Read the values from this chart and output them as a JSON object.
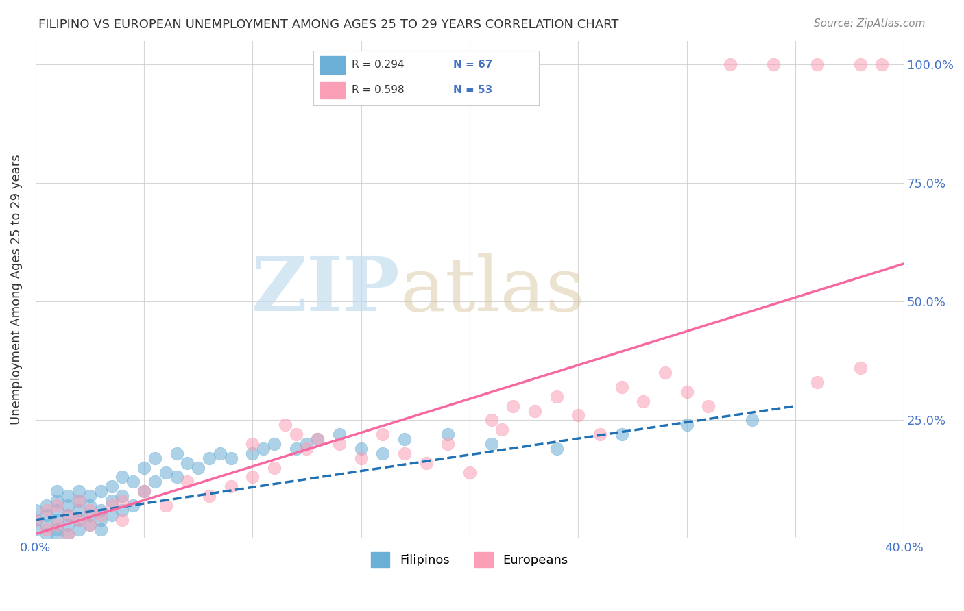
{
  "title": "FILIPINO VS EUROPEAN UNEMPLOYMENT AMONG AGES 25 TO 29 YEARS CORRELATION CHART",
  "source": "Source: ZipAtlas.com",
  "ylabel": "Unemployment Among Ages 25 to 29 years",
  "xlim": [
    0.0,
    0.4
  ],
  "ylim": [
    0.0,
    1.05
  ],
  "legend_blue_R": "R = 0.294",
  "legend_blue_N": "N = 67",
  "legend_pink_R": "R = 0.598",
  "legend_pink_N": "N = 53",
  "blue_color": "#6baed6",
  "pink_color": "#fa9fb5",
  "blue_line_color": "#2171b5",
  "pink_line_color": "#f768a1",
  "title_color": "#333333",
  "axis_color": "#4472c4",
  "watermark_zip": "ZIP",
  "watermark_atlas": "atlas",
  "filipinos_x": [
    0.0,
    0.0,
    0.0,
    0.005,
    0.005,
    0.005,
    0.005,
    0.01,
    0.01,
    0.01,
    0.01,
    0.01,
    0.01,
    0.015,
    0.015,
    0.015,
    0.015,
    0.015,
    0.02,
    0.02,
    0.02,
    0.02,
    0.02,
    0.025,
    0.025,
    0.025,
    0.025,
    0.03,
    0.03,
    0.03,
    0.03,
    0.035,
    0.035,
    0.035,
    0.04,
    0.04,
    0.04,
    0.045,
    0.045,
    0.05,
    0.05,
    0.055,
    0.055,
    0.06,
    0.065,
    0.065,
    0.07,
    0.075,
    0.08,
    0.085,
    0.09,
    0.1,
    0.105,
    0.11,
    0.12,
    0.125,
    0.13,
    0.14,
    0.15,
    0.16,
    0.17,
    0.19,
    0.21,
    0.24,
    0.27,
    0.3,
    0.33
  ],
  "filipinos_y": [
    0.02,
    0.04,
    0.06,
    0.01,
    0.03,
    0.05,
    0.07,
    0.01,
    0.02,
    0.04,
    0.06,
    0.08,
    0.1,
    0.01,
    0.03,
    0.05,
    0.07,
    0.09,
    0.02,
    0.04,
    0.06,
    0.08,
    0.1,
    0.03,
    0.05,
    0.07,
    0.09,
    0.02,
    0.04,
    0.06,
    0.1,
    0.05,
    0.08,
    0.11,
    0.06,
    0.09,
    0.13,
    0.07,
    0.12,
    0.1,
    0.15,
    0.12,
    0.17,
    0.14,
    0.13,
    0.18,
    0.16,
    0.15,
    0.17,
    0.18,
    0.17,
    0.18,
    0.19,
    0.2,
    0.19,
    0.2,
    0.21,
    0.22,
    0.19,
    0.18,
    0.21,
    0.22,
    0.2,
    0.19,
    0.22,
    0.24,
    0.25
  ],
  "europeans_x": [
    0.0,
    0.005,
    0.005,
    0.01,
    0.01,
    0.015,
    0.015,
    0.02,
    0.02,
    0.025,
    0.025,
    0.03,
    0.035,
    0.04,
    0.04,
    0.05,
    0.06,
    0.07,
    0.08,
    0.09,
    0.1,
    0.1,
    0.11,
    0.115,
    0.12,
    0.125,
    0.13,
    0.14,
    0.15,
    0.16,
    0.17,
    0.18,
    0.19,
    0.2,
    0.21,
    0.215,
    0.22,
    0.23,
    0.24,
    0.25,
    0.26,
    0.27,
    0.28,
    0.29,
    0.3,
    0.31,
    0.32,
    0.34,
    0.36,
    0.36,
    0.38,
    0.38,
    0.39
  ],
  "europeans_y": [
    0.04,
    0.02,
    0.06,
    0.03,
    0.07,
    0.01,
    0.05,
    0.04,
    0.08,
    0.03,
    0.06,
    0.05,
    0.07,
    0.04,
    0.08,
    0.1,
    0.07,
    0.12,
    0.09,
    0.11,
    0.13,
    0.2,
    0.15,
    0.24,
    0.22,
    0.19,
    0.21,
    0.2,
    0.17,
    0.22,
    0.18,
    0.16,
    0.2,
    0.14,
    0.25,
    0.23,
    0.28,
    0.27,
    0.3,
    0.26,
    0.22,
    0.32,
    0.29,
    0.35,
    0.31,
    0.28,
    1.0,
    1.0,
    1.0,
    0.33,
    1.0,
    0.36,
    1.0
  ],
  "blue_trend_x": [
    0.0,
    0.35
  ],
  "blue_trend_y": [
    0.04,
    0.28
  ],
  "pink_trend_x": [
    0.0,
    0.4
  ],
  "pink_trend_y": [
    0.01,
    0.58
  ],
  "grid_color": "#cccccc",
  "bg_color": "#ffffff"
}
